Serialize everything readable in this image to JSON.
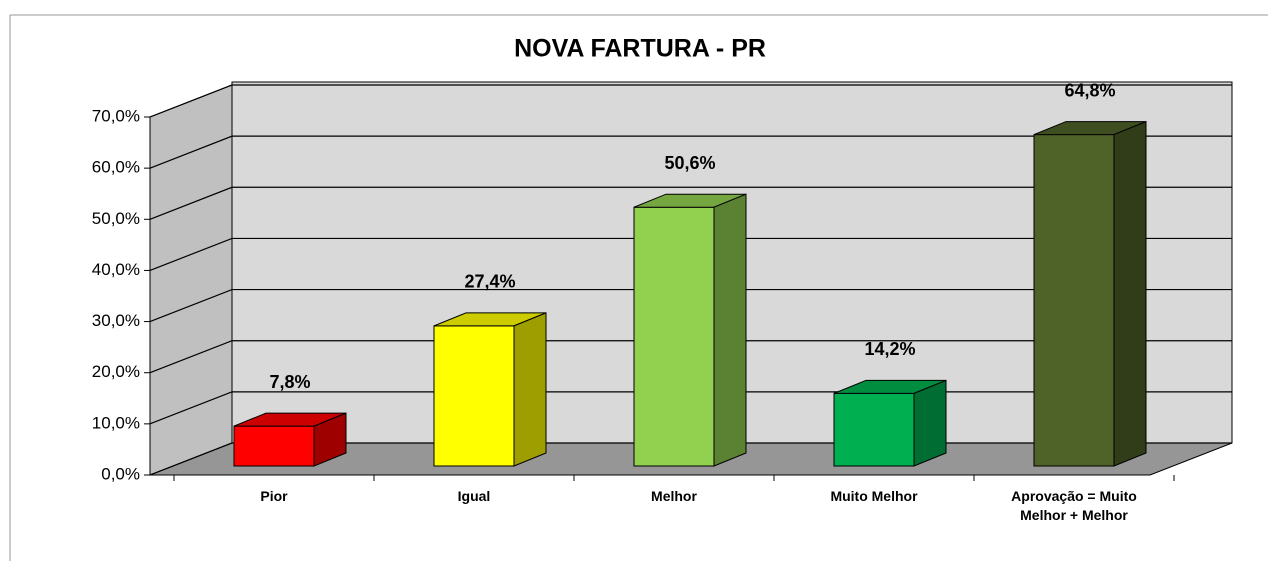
{
  "chart_data": {
    "type": "bar3d",
    "title": "NOVA FARTURA - PR",
    "categories": [
      "Pior",
      "Igual",
      "Melhor",
      "Muito Melhor",
      "Aprovação = Muito Melhor + Melhor"
    ],
    "values": [
      7.8,
      27.4,
      50.6,
      14.2,
      64.8
    ],
    "value_labels": [
      "7,8%",
      "27,4%",
      "50,6%",
      "14,2%",
      "64,8%"
    ],
    "colors": [
      "#ff0000",
      "#ffff00",
      "#92d050",
      "#00b050",
      "#4f6228"
    ],
    "ylim": [
      0,
      70
    ],
    "yticks": [
      {
        "value": 0,
        "label": "0,0%"
      },
      {
        "value": 10,
        "label": "10,0%"
      },
      {
        "value": 20,
        "label": "20,0%"
      },
      {
        "value": 30,
        "label": "30,0%"
      },
      {
        "value": 40,
        "label": "40,0%"
      },
      {
        "value": 50,
        "label": "50,0%"
      },
      {
        "value": 60,
        "label": "60,0%"
      },
      {
        "value": 70,
        "label": "70,0%"
      }
    ],
    "grid": true
  }
}
